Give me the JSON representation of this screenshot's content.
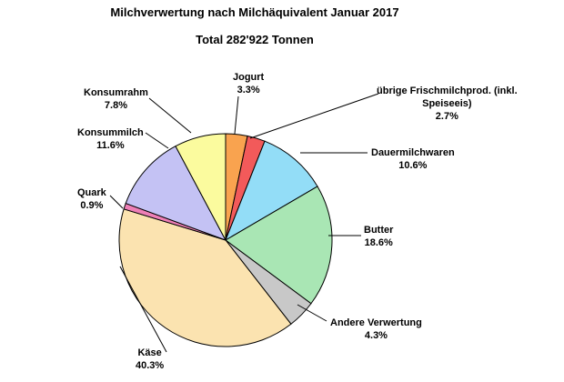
{
  "chart_data": {
    "type": "pie",
    "title": "Milchverwertung nach Milchäquivalent Januar 2017",
    "subtitle": "Total 282'922 Tonnen",
    "slices": [
      {
        "label": "Jogurt",
        "value_label": "3.3%",
        "value": 3.3,
        "color": "#f9a34f"
      },
      {
        "label": "übrige Frischmilchprod. (inkl. Speiseeis)",
        "label_line1": "übrige Frischmilchprod. (inkl.",
        "label_line2": "Speiseeis)",
        "value_label": "2.7%",
        "value": 2.7,
        "color": "#f25a5a"
      },
      {
        "label": "Dauermilchwaren",
        "value_label": "10.6%",
        "value": 10.6,
        "color": "#93ddf7"
      },
      {
        "label": "Butter",
        "value_label": "18.6%",
        "value": 18.6,
        "color": "#a9e6b4"
      },
      {
        "label": "Andere Verwertung",
        "value_label": "4.3%",
        "value": 4.3,
        "color": "#c8c8c8"
      },
      {
        "label": "Käse",
        "value_label": "40.3%",
        "value": 40.3,
        "color": "#fbe3b0"
      },
      {
        "label": "Quark",
        "value_label": "0.9%",
        "value": 0.9,
        "color": "#ee7fb6"
      },
      {
        "label": "Konsummilch",
        "value_label": "11.6%",
        "value": 11.6,
        "color": "#c4c2f4"
      },
      {
        "label": "Konsumrahm",
        "value_label": "7.8%",
        "value": 7.8,
        "color": "#fbfb9e"
      }
    ],
    "start_angle_deg": 0,
    "direction": "clockwise",
    "legend": "none"
  }
}
